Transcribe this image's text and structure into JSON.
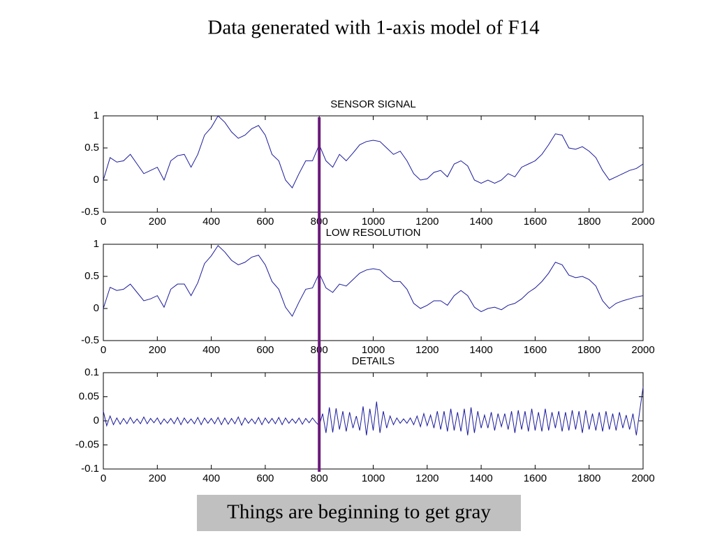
{
  "title": "Data generated with 1-axis model of F14",
  "caption": "Things are beginning to get gray",
  "vline": {
    "x": 800,
    "color": "#6b1a7a"
  },
  "chart_data": [
    {
      "type": "line",
      "title": "SENSOR SIGNAL",
      "xlim": [
        0,
        2000
      ],
      "xticks": [
        0,
        200,
        400,
        600,
        800,
        1000,
        1200,
        1400,
        1600,
        1800,
        2000
      ],
      "ylim": [
        -0.5,
        1
      ],
      "yticks": [
        -0.5,
        0,
        0.5,
        1
      ],
      "x": [
        0,
        25,
        50,
        75,
        100,
        125,
        150,
        175,
        200,
        225,
        250,
        275,
        300,
        325,
        350,
        375,
        400,
        425,
        450,
        475,
        500,
        525,
        550,
        575,
        600,
        625,
        650,
        675,
        700,
        725,
        750,
        775,
        800,
        825,
        850,
        875,
        900,
        925,
        950,
        975,
        1000,
        1025,
        1050,
        1075,
        1100,
        1125,
        1150,
        1175,
        1200,
        1225,
        1250,
        1275,
        1300,
        1325,
        1350,
        1375,
        1400,
        1425,
        1450,
        1475,
        1500,
        1525,
        1550,
        1575,
        1600,
        1625,
        1650,
        1675,
        1700,
        1725,
        1750,
        1775,
        1800,
        1825,
        1850,
        1875,
        1900,
        1925,
        1950,
        1975,
        2000
      ],
      "series": [
        {
          "color": "#1a1a9c",
          "values": [
            0,
            0.35,
            0.28,
            0.3,
            0.4,
            0.25,
            0.1,
            0.15,
            0.2,
            0.0,
            0.3,
            0.38,
            0.4,
            0.2,
            0.4,
            0.7,
            0.82,
            1.0,
            0.9,
            0.75,
            0.65,
            0.7,
            0.8,
            0.85,
            0.7,
            0.4,
            0.3,
            0.0,
            -0.12,
            0.1,
            0.3,
            0.3,
            0.55,
            0.3,
            0.2,
            0.4,
            0.3,
            0.42,
            0.55,
            0.6,
            0.62,
            0.6,
            0.5,
            0.4,
            0.45,
            0.3,
            0.1,
            0.0,
            0.02,
            0.12,
            0.15,
            0.05,
            0.25,
            0.3,
            0.22,
            0.0,
            -0.05,
            0.0,
            -0.05,
            0.0,
            0.1,
            0.05,
            0.2,
            0.25,
            0.3,
            0.4,
            0.55,
            0.72,
            0.7,
            0.5,
            0.48,
            0.52,
            0.45,
            0.35,
            0.15,
            0.0,
            0.05,
            0.1,
            0.15,
            0.18,
            0.25
          ]
        }
      ]
    },
    {
      "type": "line",
      "title": "LOW RESOLUTION",
      "xlim": [
        0,
        2000
      ],
      "xticks": [
        0,
        200,
        400,
        600,
        800,
        1000,
        1200,
        1400,
        1600,
        1800,
        2000
      ],
      "ylim": [
        -0.5,
        1
      ],
      "yticks": [
        -0.5,
        0,
        0.5,
        1
      ],
      "x": [
        0,
        25,
        50,
        75,
        100,
        125,
        150,
        175,
        200,
        225,
        250,
        275,
        300,
        325,
        350,
        375,
        400,
        425,
        450,
        475,
        500,
        525,
        550,
        575,
        600,
        625,
        650,
        675,
        700,
        725,
        750,
        775,
        800,
        825,
        850,
        875,
        900,
        925,
        950,
        975,
        1000,
        1025,
        1050,
        1075,
        1100,
        1125,
        1150,
        1175,
        1200,
        1225,
        1250,
        1275,
        1300,
        1325,
        1350,
        1375,
        1400,
        1425,
        1450,
        1475,
        1500,
        1525,
        1550,
        1575,
        1600,
        1625,
        1650,
        1675,
        1700,
        1725,
        1750,
        1775,
        1800,
        1825,
        1850,
        1875,
        1900,
        1925,
        1950,
        1975,
        2000
      ],
      "series": [
        {
          "color": "#1a1a9c",
          "values": [
            0,
            0.33,
            0.28,
            0.3,
            0.38,
            0.25,
            0.12,
            0.15,
            0.2,
            0.02,
            0.3,
            0.38,
            0.38,
            0.2,
            0.4,
            0.7,
            0.82,
            0.98,
            0.88,
            0.75,
            0.68,
            0.72,
            0.8,
            0.83,
            0.68,
            0.42,
            0.3,
            0.02,
            -0.12,
            0.1,
            0.3,
            0.32,
            0.55,
            0.32,
            0.25,
            0.38,
            0.35,
            0.45,
            0.55,
            0.6,
            0.62,
            0.6,
            0.5,
            0.42,
            0.42,
            0.3,
            0.08,
            0.0,
            0.05,
            0.12,
            0.12,
            0.05,
            0.2,
            0.28,
            0.2,
            0.02,
            -0.05,
            0.0,
            0.02,
            -0.02,
            0.05,
            0.08,
            0.15,
            0.25,
            0.32,
            0.42,
            0.55,
            0.72,
            0.68,
            0.52,
            0.48,
            0.5,
            0.45,
            0.35,
            0.12,
            0.0,
            0.08,
            0.12,
            0.15,
            0.18,
            0.2
          ]
        }
      ]
    },
    {
      "type": "line",
      "title": "DETAILS",
      "xlim": [
        0,
        2000
      ],
      "xticks": [
        0,
        200,
        400,
        600,
        800,
        1000,
        1200,
        1400,
        1600,
        1800,
        2000
      ],
      "ylim": [
        -0.1,
        0.1
      ],
      "yticks": [
        -0.1,
        -0.05,
        0,
        0.05,
        0.1
      ],
      "x": [
        0,
        12.5,
        25,
        37.5,
        50,
        62.5,
        75,
        87.5,
        100,
        112.5,
        125,
        137.5,
        150,
        162.5,
        175,
        187.5,
        200,
        212.5,
        225,
        237.5,
        250,
        262.5,
        275,
        287.5,
        300,
        312.5,
        325,
        337.5,
        350,
        362.5,
        375,
        387.5,
        400,
        412.5,
        425,
        437.5,
        450,
        462.5,
        475,
        487.5,
        500,
        512.5,
        525,
        537.5,
        550,
        562.5,
        575,
        587.5,
        600,
        612.5,
        625,
        637.5,
        650,
        662.5,
        675,
        687.5,
        700,
        712.5,
        725,
        737.5,
        750,
        762.5,
        775,
        787.5,
        800,
        812.5,
        825,
        837.5,
        850,
        862.5,
        875,
        887.5,
        900,
        912.5,
        925,
        937.5,
        950,
        962.5,
        975,
        987.5,
        1000,
        1012.5,
        1025,
        1037.5,
        1050,
        1062.5,
        1075,
        1087.5,
        1100,
        1112.5,
        1125,
        1137.5,
        1150,
        1162.5,
        1175,
        1187.5,
        1200,
        1212.5,
        1225,
        1237.5,
        1250,
        1262.5,
        1275,
        1287.5,
        1300,
        1312.5,
        1325,
        1337.5,
        1350,
        1362.5,
        1375,
        1387.5,
        1400,
        1412.5,
        1425,
        1437.5,
        1450,
        1462.5,
        1475,
        1487.5,
        1500,
        1512.5,
        1525,
        1537.5,
        1550,
        1562.5,
        1575,
        1587.5,
        1600,
        1612.5,
        1625,
        1637.5,
        1650,
        1662.5,
        1675,
        1687.5,
        1700,
        1712.5,
        1725,
        1737.5,
        1750,
        1762.5,
        1775,
        1787.5,
        1800,
        1812.5,
        1825,
        1837.5,
        1850,
        1862.5,
        1875,
        1887.5,
        1900,
        1912.5,
        1925,
        1937.5,
        1950,
        1962.5,
        1975,
        1987.5,
        2000
      ],
      "series": [
        {
          "color": "#1a1a9c",
          "values": [
            0.02,
            -0.01,
            0.01,
            -0.008,
            0.006,
            -0.007,
            0.005,
            -0.006,
            0.007,
            -0.005,
            0.004,
            -0.006,
            0.008,
            -0.006,
            0.005,
            -0.004,
            0.006,
            -0.007,
            0.004,
            -0.005,
            0.005,
            -0.006,
            0.007,
            -0.008,
            0.006,
            -0.005,
            0.004,
            -0.006,
            0.007,
            -0.008,
            0.006,
            -0.005,
            0.005,
            -0.006,
            0.007,
            -0.008,
            0.006,
            -0.007,
            0.005,
            -0.006,
            0.008,
            -0.009,
            0.006,
            -0.005,
            0.004,
            -0.006,
            0.007,
            -0.008,
            0.006,
            -0.005,
            0.005,
            -0.006,
            0.007,
            -0.008,
            0.006,
            -0.005,
            0.004,
            -0.005,
            0.006,
            -0.007,
            0.005,
            -0.004,
            0.006,
            -0.003,
            -0.01,
            0.015,
            -0.025,
            0.028,
            -0.024,
            0.026,
            -0.018,
            0.02,
            -0.022,
            0.018,
            -0.015,
            0.01,
            -0.02,
            0.03,
            -0.03,
            0.025,
            -0.02,
            0.04,
            -0.025,
            0.02,
            -0.015,
            0.01,
            -0.008,
            0.006,
            -0.005,
            0.004,
            -0.005,
            0.006,
            -0.008,
            0.01,
            -0.012,
            0.015,
            -0.01,
            0.012,
            -0.015,
            0.02,
            -0.018,
            0.02,
            -0.022,
            0.025,
            -0.02,
            0.018,
            -0.022,
            0.025,
            -0.03,
            0.028,
            -0.025,
            0.02,
            -0.015,
            0.012,
            -0.015,
            0.018,
            -0.02,
            0.015,
            -0.012,
            0.015,
            -0.018,
            0.02,
            -0.025,
            0.022,
            -0.018,
            0.02,
            -0.022,
            0.025,
            -0.02,
            0.018,
            -0.022,
            0.025,
            -0.02,
            0.018,
            -0.015,
            0.02,
            -0.022,
            0.018,
            -0.02,
            0.022,
            -0.018,
            0.02,
            -0.025,
            0.022,
            -0.018,
            0.015,
            -0.02,
            0.018,
            -0.022,
            0.02,
            -0.018,
            0.015,
            -0.02,
            0.018,
            -0.015,
            0.012,
            -0.018,
            0.015,
            -0.03,
            0.02,
            0.07
          ]
        }
      ]
    }
  ]
}
